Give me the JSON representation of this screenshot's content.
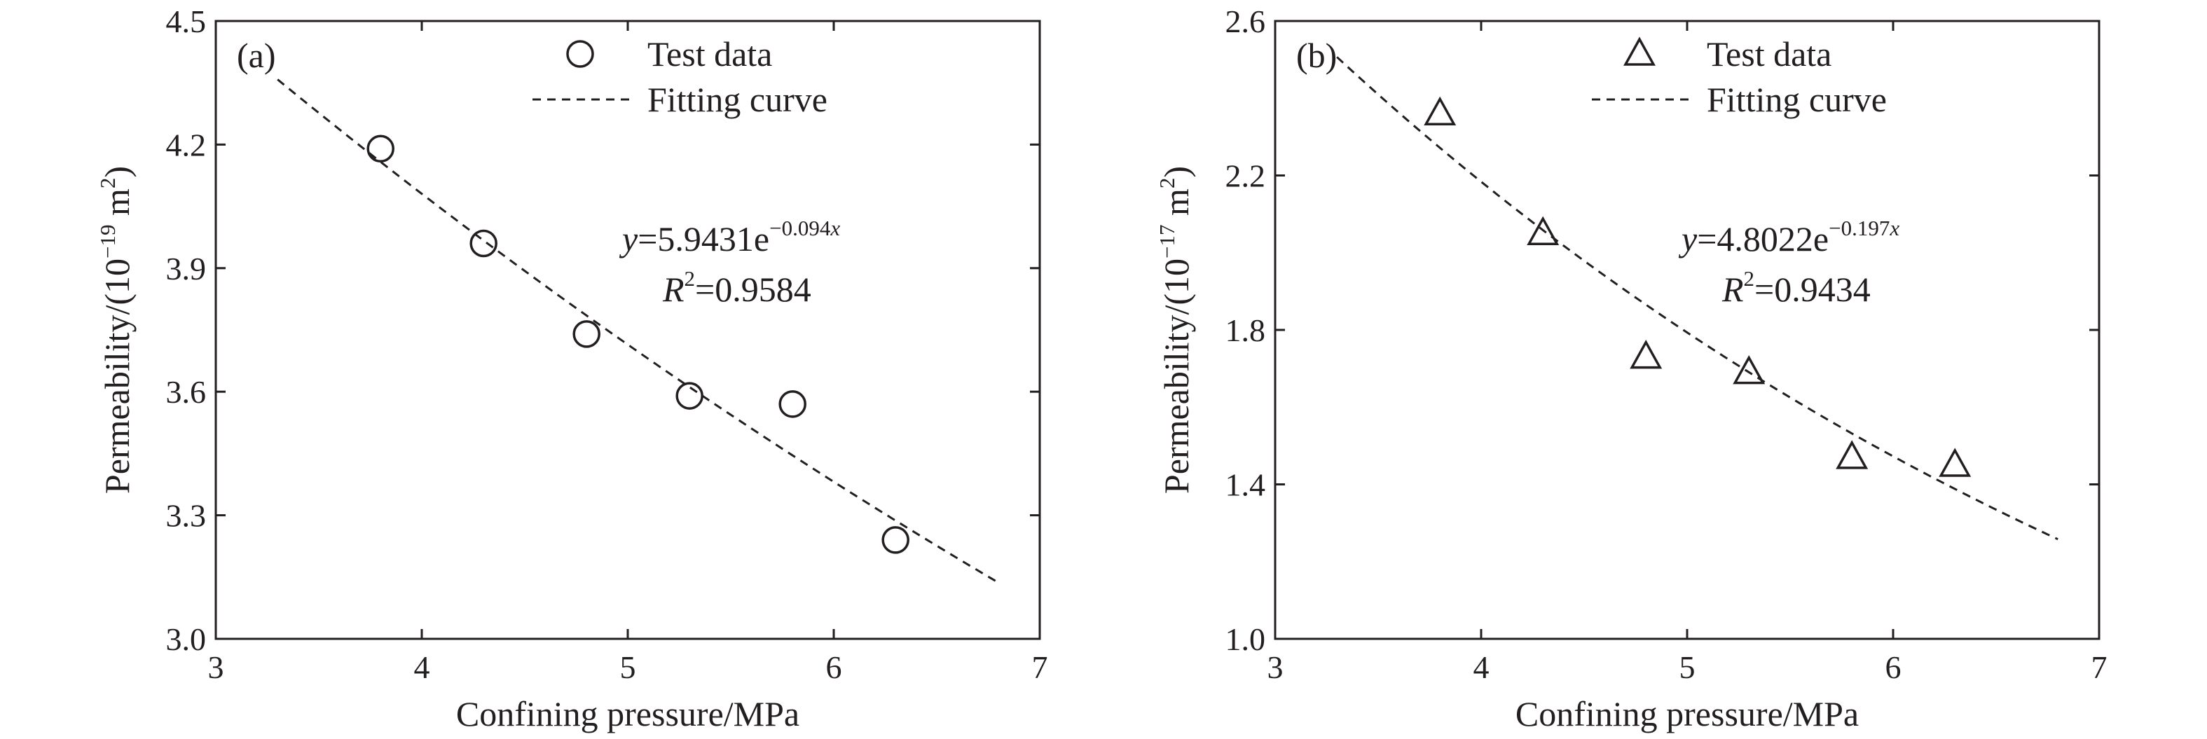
{
  "chart_data": [
    {
      "type": "scatter",
      "panel_label": "(a)",
      "xlabel": "Confining pressure/MPa",
      "ylabel": {
        "prefix": "Permeability/(10",
        "exponent": "−19",
        "suffix": " m",
        "unit_exponent": "2",
        "close": ")"
      },
      "xlim": [
        3,
        7
      ],
      "ylim": [
        3.0,
        4.5
      ],
      "xticks": [
        "3",
        "4",
        "5",
        "6",
        "7"
      ],
      "yticks": [
        "3.0",
        "3.3",
        "3.6",
        "3.9",
        "4.2",
        "4.5"
      ],
      "series": [
        {
          "name": "Test data",
          "marker": "circle",
          "x": [
            3.8,
            4.3,
            4.8,
            5.3,
            5.8,
            6.3
          ],
          "y": [
            4.19,
            3.96,
            3.74,
            3.59,
            3.57,
            3.24
          ]
        }
      ],
      "fit": {
        "name": "Fitting curve",
        "a": 5.9431,
        "b": -0.094,
        "x_range": [
          3.3,
          6.8
        ],
        "equation": {
          "y": "y",
          "eq": "=5.9431e",
          "exp": "−0.094",
          "x": "x",
          "r": "R",
          "r_sup": "2",
          "r_val": "=0.9584"
        }
      },
      "legend": "top-center",
      "grid": false
    },
    {
      "type": "scatter",
      "panel_label": "(b)",
      "xlabel": "Confining pressure/MPa",
      "ylabel": {
        "prefix": "Permeability/(10",
        "exponent": "−17",
        "suffix": " m",
        "unit_exponent": "2",
        "close": ")"
      },
      "xlim": [
        3,
        7
      ],
      "ylim": [
        1.0,
        2.6
      ],
      "xticks": [
        "3",
        "4",
        "5",
        "6",
        "7"
      ],
      "yticks": [
        "1.0",
        "1.4",
        "1.8",
        "2.2",
        "2.6"
      ],
      "series": [
        {
          "name": "Test data",
          "marker": "triangle",
          "x": [
            3.8,
            4.3,
            4.8,
            5.3,
            5.8,
            6.3
          ],
          "y": [
            2.36,
            2.05,
            1.73,
            1.69,
            1.47,
            1.45
          ]
        }
      ],
      "fit": {
        "name": "Fitting curve",
        "a": 4.8022,
        "b": -0.197,
        "x_range": [
          3.3,
          6.8
        ],
        "equation": {
          "y": "y",
          "eq": "=4.8022e",
          "exp": "−0.197",
          "x": "x",
          "r": "R",
          "r_sup": "2",
          "r_val": "=0.9434"
        }
      },
      "legend": "top-center",
      "grid": false
    }
  ]
}
